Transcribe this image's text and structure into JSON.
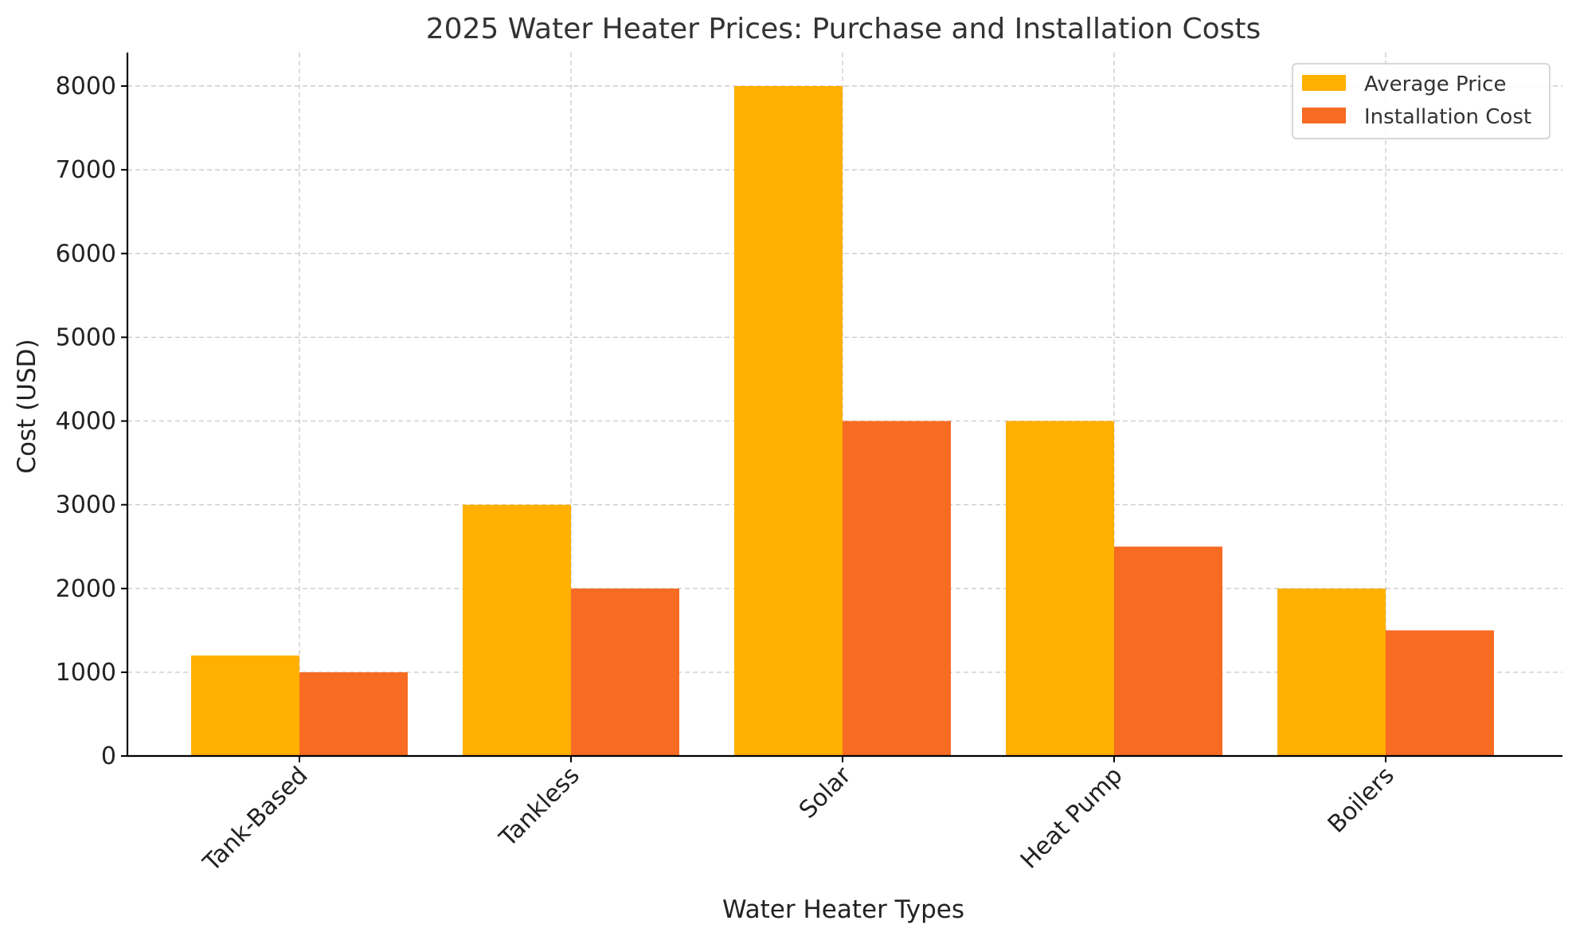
{
  "chart_data": {
    "type": "bar",
    "title": "2025 Water Heater Prices: Purchase and Installation Costs",
    "xlabel": "Water Heater Types",
    "ylabel": "Cost (USD)",
    "categories": [
      "Tank-Based",
      "Tankless",
      "Solar",
      "Heat Pump",
      "Boilers"
    ],
    "series": [
      {
        "name": "Average Price",
        "color": "#FFB000",
        "values": [
          1200,
          3000,
          8000,
          4000,
          2000
        ]
      },
      {
        "name": "Installation Cost",
        "color": "#F76B23",
        "values": [
          1000,
          2000,
          4000,
          2500,
          1500
        ]
      }
    ],
    "ylim": [
      0,
      8400
    ],
    "yticks": [
      0,
      1000,
      2000,
      3000,
      4000,
      5000,
      6000,
      7000,
      8000
    ],
    "grid": true,
    "legend": "top-right"
  }
}
